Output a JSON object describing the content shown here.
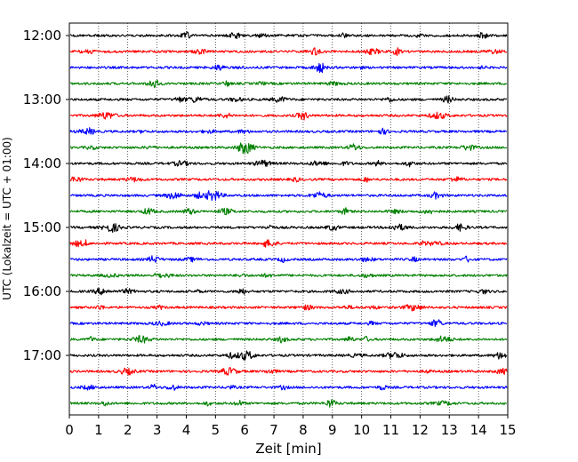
{
  "chart_data": {
    "type": "line",
    "title": "",
    "xlabel": "Zeit  [min]",
    "ylabel": "UTC (Lokalzeit = UTC + 01:00)",
    "xlim": [
      0,
      15
    ],
    "x_ticks": [
      0,
      1,
      2,
      3,
      4,
      5,
      6,
      7,
      8,
      9,
      10,
      11,
      12,
      13,
      14,
      15
    ],
    "x_tick_labels": [
      "0",
      "1",
      "2",
      "3",
      "4",
      "5",
      "6",
      "7",
      "8",
      "9",
      "10",
      "11",
      "12",
      "13",
      "14",
      "15"
    ],
    "y_axis": "time of day (UTC), one trace per 15 minutes, later times lower",
    "y_tick_labels": [
      "12:00",
      "13:00",
      "14:00",
      "15:00",
      "16:00",
      "17:00"
    ],
    "y_tick_times": [
      "12:00",
      "13:00",
      "14:00",
      "15:00",
      "16:00",
      "17:00"
    ],
    "trace_interval_min": 15,
    "grid": "vertical dotted lines at every minute",
    "color_cycle": [
      "#000000",
      "#ff0000",
      "#0000ff",
      "#008000"
    ],
    "traces": [
      {
        "start": "12:00",
        "color": "#000000"
      },
      {
        "start": "12:15",
        "color": "#ff0000"
      },
      {
        "start": "12:30",
        "color": "#0000ff"
      },
      {
        "start": "12:45",
        "color": "#008000"
      },
      {
        "start": "13:00",
        "color": "#000000"
      },
      {
        "start": "13:15",
        "color": "#ff0000"
      },
      {
        "start": "13:30",
        "color": "#0000ff"
      },
      {
        "start": "13:45",
        "color": "#008000"
      },
      {
        "start": "14:00",
        "color": "#000000"
      },
      {
        "start": "14:15",
        "color": "#ff0000"
      },
      {
        "start": "14:30",
        "color": "#0000ff"
      },
      {
        "start": "14:45",
        "color": "#008000"
      },
      {
        "start": "15:00",
        "color": "#000000"
      },
      {
        "start": "15:15",
        "color": "#ff0000"
      },
      {
        "start": "15:30",
        "color": "#0000ff"
      },
      {
        "start": "15:45",
        "color": "#008000"
      },
      {
        "start": "16:00",
        "color": "#000000"
      },
      {
        "start": "16:15",
        "color": "#ff0000"
      },
      {
        "start": "16:30",
        "color": "#0000ff"
      },
      {
        "start": "16:45",
        "color": "#008000"
      },
      {
        "start": "17:00",
        "color": "#000000"
      },
      {
        "start": "17:15",
        "color": "#ff0000"
      },
      {
        "start": "17:30",
        "color": "#0000ff"
      },
      {
        "start": "17:45",
        "color": "#008000"
      }
    ]
  }
}
